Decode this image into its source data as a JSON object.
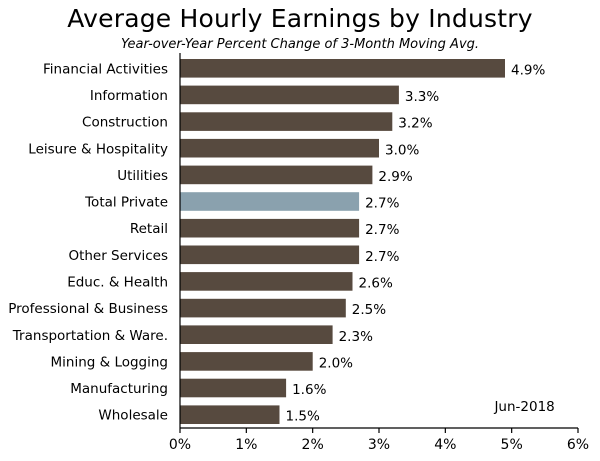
{
  "chart_data": {
    "type": "bar",
    "orientation": "horizontal",
    "title": "Average Hourly Earnings by Industry",
    "subtitle": "Year-over-Year Percent Change of 3-Month Moving Avg.",
    "categories": [
      "Financial Activities",
      "Information",
      "Construction",
      "Leisure & Hospitality",
      "Utilities",
      "Total Private",
      "Retail",
      "Other Services",
      "Educ. & Health",
      "Professional & Business",
      "Transportation & Ware.",
      "Mining & Logging",
      "Manufacturing",
      "Wholesale"
    ],
    "values": [
      4.9,
      3.3,
      3.2,
      3.0,
      2.9,
      2.7,
      2.7,
      2.7,
      2.6,
      2.5,
      2.3,
      2.0,
      1.6,
      1.5
    ],
    "data_labels": [
      "4.9%",
      "3.3%",
      "3.2%",
      "3.0%",
      "2.9%",
      "2.7%",
      "2.7%",
      "2.7%",
      "2.6%",
      "2.5%",
      "2.3%",
      "2.0%",
      "1.6%",
      "1.5%"
    ],
    "highlight_category": "Total Private",
    "xlim": [
      0,
      6
    ],
    "x_ticks": [
      "0%",
      "1%",
      "2%",
      "3%",
      "4%",
      "5%",
      "6%"
    ],
    "annotation": "Jun-2018",
    "grid": false,
    "colors": {
      "bar": "#574a3f",
      "highlight": "#8aa1ae",
      "axis": "#000000"
    }
  }
}
